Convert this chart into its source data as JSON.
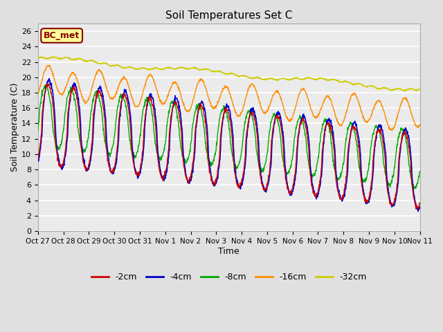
{
  "title": "Soil Temperatures Set C",
  "xlabel": "Time",
  "ylabel": "Soil Temperature (C)",
  "ylim": [
    0,
    27
  ],
  "yticks": [
    0,
    2,
    4,
    6,
    8,
    10,
    12,
    14,
    16,
    18,
    20,
    22,
    24,
    26
  ],
  "xtick_labels": [
    "Oct 27",
    "Oct 28",
    "Oct 29",
    "Oct 30",
    "Oct 31",
    "Nov 1",
    "Nov 2",
    "Nov 3",
    "Nov 4",
    "Nov 5",
    "Nov 6",
    "Nov 7",
    "Nov 8",
    "Nov 9",
    "Nov 10",
    "Nov 11"
  ],
  "legend_labels": [
    "-2cm",
    "-4cm",
    "-8cm",
    "-16cm",
    "-32cm"
  ],
  "series_colors": [
    "#cc0000",
    "#0000cc",
    "#00aa00",
    "#ff8c00",
    "#cccc00"
  ],
  "annotation_text": "BC_met",
  "annotation_bg": "#ffff99",
  "annotation_border": "#880000",
  "fig_bg": "#e0e0e0",
  "plot_bg": "#ebebeb",
  "grid_color": "#ffffff",
  "days": 15,
  "n_points": 1440
}
